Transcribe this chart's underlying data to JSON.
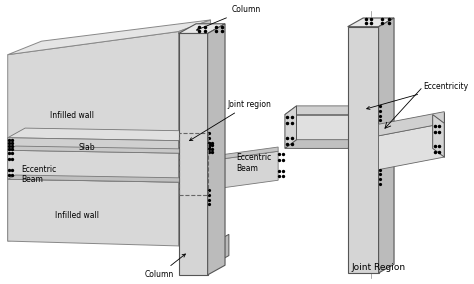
{
  "bg_color": "#ffffff",
  "fig_width": 4.74,
  "fig_height": 2.84,
  "dpi": 100,
  "labels": {
    "column_top": "Column",
    "column_bottom": "Column",
    "infilled_wall_top": "Infilled wall",
    "infilled_wall_bottom": "Infilled wall",
    "slab": "Slab",
    "joint_region": "Joint region",
    "eccentric_beam_left": "Eccentric\nBeam",
    "eccentric_beam_right": "Eccentric\nBeam",
    "eccentricity": "Eccentricity",
    "joint_region_label": "Joint Region"
  },
  "fs": 5.5,
  "fs_main": 6.5
}
